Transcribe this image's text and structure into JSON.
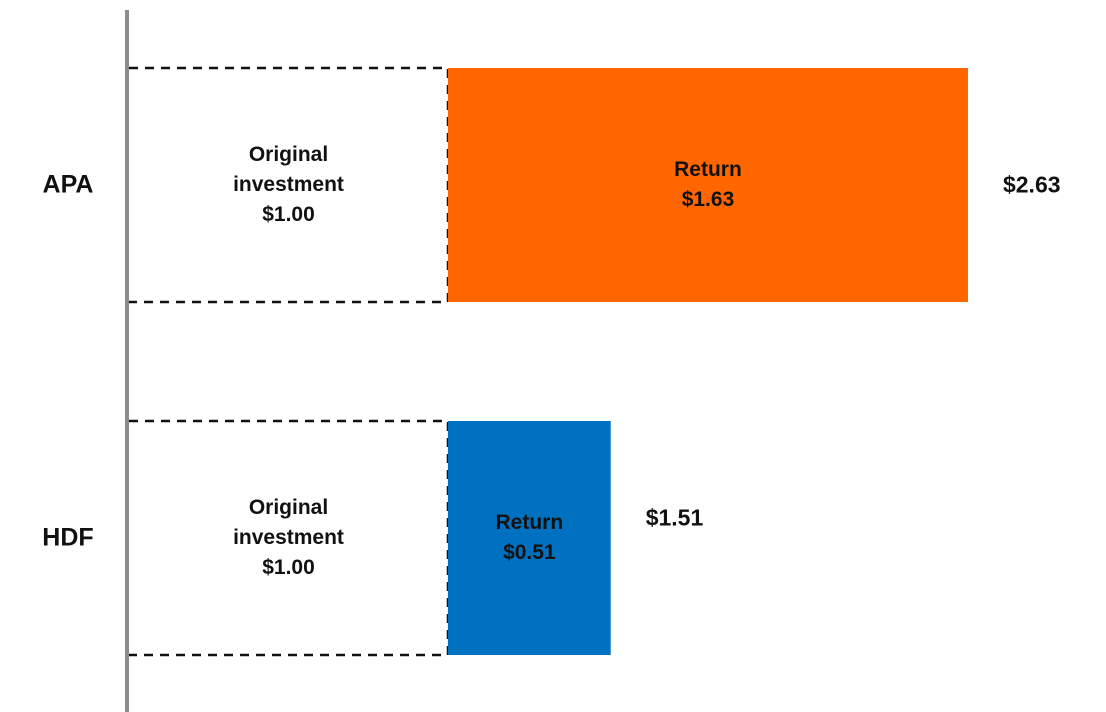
{
  "chart_data": {
    "type": "stacked-bar",
    "orientation": "horizontal",
    "categories": [
      "APA",
      "HDF"
    ],
    "series": [
      {
        "name": "Original investment",
        "style": "dashed-outline",
        "color": "#ffffff",
        "values": [
          1.0,
          1.0
        ],
        "value_labels": [
          "$1.00",
          "$1.00"
        ]
      },
      {
        "name": "Return",
        "colors": [
          "#ff6600",
          "#0070c0"
        ],
        "values": [
          1.63,
          0.51
        ],
        "value_labels": [
          "$1.63",
          "$0.51"
        ]
      }
    ],
    "totals": [
      2.63,
      1.51
    ],
    "total_labels": [
      "$2.63",
      "$1.51"
    ]
  }
}
